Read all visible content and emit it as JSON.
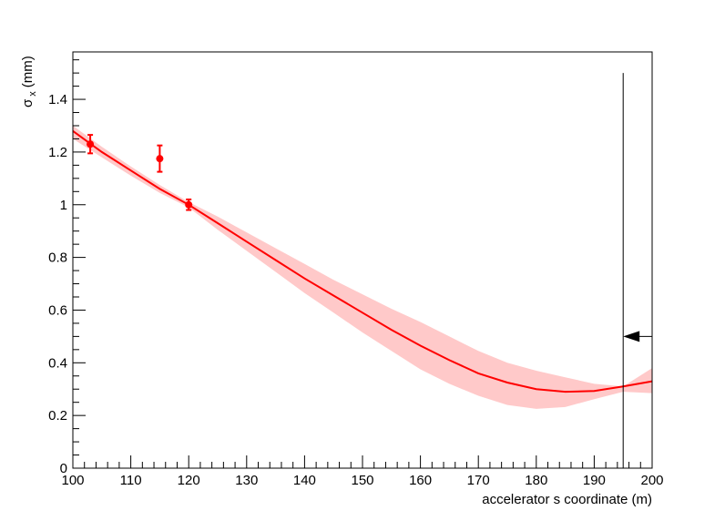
{
  "chart_data": {
    "type": "line",
    "title": "",
    "xlabel": "accelerator s coordinate (m)",
    "ylabel": {
      "main": "σ",
      "sub": "x",
      "unit": "(mm)"
    },
    "xlim": [
      100,
      200
    ],
    "ylim": [
      0,
      1.58
    ],
    "x_ticks": [
      100,
      110,
      120,
      130,
      140,
      150,
      160,
      170,
      180,
      190,
      200
    ],
    "x_tick_labels": [
      "100",
      "110",
      "120",
      "130",
      "140",
      "150",
      "160",
      "170",
      "180",
      "190",
      "200"
    ],
    "y_ticks": [
      0,
      0.2,
      0.4,
      0.6,
      0.8,
      1,
      1.2,
      1.4
    ],
    "y_tick_labels": [
      "0",
      "0.2",
      "0.4",
      "0.6",
      "0.8",
      "1",
      "1.2",
      "1.4"
    ],
    "grid": false,
    "legend": "none",
    "colors": {
      "fit": "#ff0000",
      "band": "#ffc9c9",
      "points": "#ff0000",
      "marker": "#000000"
    },
    "fit_curve": {
      "x": [
        100,
        105,
        110,
        115,
        120,
        125,
        130,
        135,
        140,
        145,
        150,
        155,
        160,
        165,
        170,
        175,
        180,
        185,
        190,
        195,
        200
      ],
      "y": [
        1.28,
        1.2,
        1.13,
        1.06,
        1.0,
        0.93,
        0.86,
        0.79,
        0.72,
        0.655,
        0.59,
        0.525,
        0.465,
        0.41,
        0.36,
        0.325,
        0.3,
        0.29,
        0.293,
        0.31,
        0.33
      ]
    },
    "error_band": {
      "x": [
        100,
        105,
        110,
        115,
        120,
        125,
        130,
        135,
        140,
        145,
        150,
        155,
        160,
        165,
        170,
        175,
        180,
        185,
        190,
        195,
        200
      ],
      "lower": [
        1.25,
        1.18,
        1.11,
        1.045,
        0.99,
        0.905,
        0.825,
        0.745,
        0.665,
        0.59,
        0.515,
        0.445,
        0.375,
        0.32,
        0.275,
        0.24,
        0.225,
        0.232,
        0.262,
        0.29,
        0.285
      ],
      "upper": [
        1.3,
        1.22,
        1.145,
        1.075,
        1.01,
        0.955,
        0.895,
        0.835,
        0.775,
        0.715,
        0.66,
        0.605,
        0.555,
        0.5,
        0.445,
        0.4,
        0.37,
        0.345,
        0.32,
        0.31,
        0.38
      ]
    },
    "points": [
      {
        "x": 103,
        "y": 1.23,
        "err": 0.035
      },
      {
        "x": 115,
        "y": 1.175,
        "err": 0.05
      },
      {
        "x": 120,
        "y": 1.0,
        "err": 0.02
      }
    ],
    "marker_line": {
      "x": 195,
      "y_top": 1.5
    },
    "arrow": {
      "x_from": 200,
      "x_to": 195,
      "y": 0.5,
      "direction": "left"
    }
  }
}
